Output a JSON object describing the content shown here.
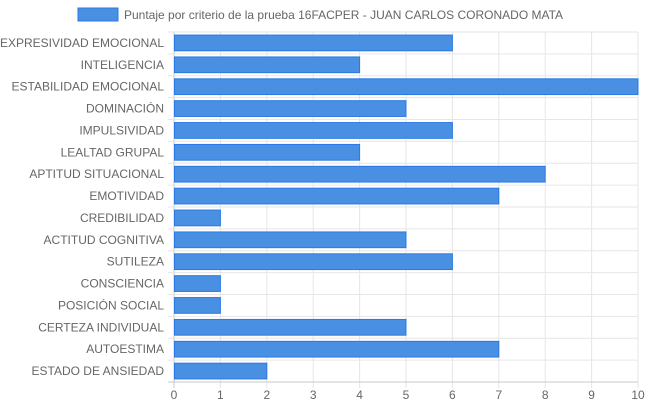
{
  "chart_data": {
    "type": "bar",
    "orientation": "horizontal",
    "categories": [
      "EXPRESIVIDAD EMOCIONAL",
      "INTELIGENCIA",
      "ESTABILIDAD EMOCIONAL",
      "DOMINACIÓN",
      "IMPULSIVIDAD",
      "LEALTAD GRUPAL",
      "APTITUD SITUACIONAL",
      "EMOTIVIDAD",
      "CREDIBILIDAD",
      "ACTITUD COGNITIVA",
      "SUTILEZA",
      "CONSCIENCIA",
      "POSICIÓN SOCIAL",
      "CERTEZA INDIVIDUAL",
      "AUTOESTIMA",
      "ESTADO DE ANSIEDAD"
    ],
    "series": [
      {
        "name": "Puntaje por criterio de la prueba 16FACPER - JUAN CARLOS CORONADO MATA",
        "values": [
          6,
          4,
          10,
          5,
          6,
          4,
          8,
          7,
          1,
          5,
          6,
          1,
          1,
          5,
          7,
          2
        ],
        "color": "#4a90e2",
        "border_color": "#2b78e4"
      }
    ],
    "xlim": [
      0,
      10
    ],
    "x_ticks": [
      "0",
      "1",
      "2",
      "3",
      "4",
      "5",
      "6",
      "7",
      "8",
      "9",
      "10"
    ],
    "grid": true,
    "legend_position": "top-center",
    "title": "",
    "xlabel": "",
    "ylabel": ""
  },
  "colors": {
    "grid": "#e6e6e6",
    "axis": "#c8c8c8",
    "text": "#666666"
  }
}
